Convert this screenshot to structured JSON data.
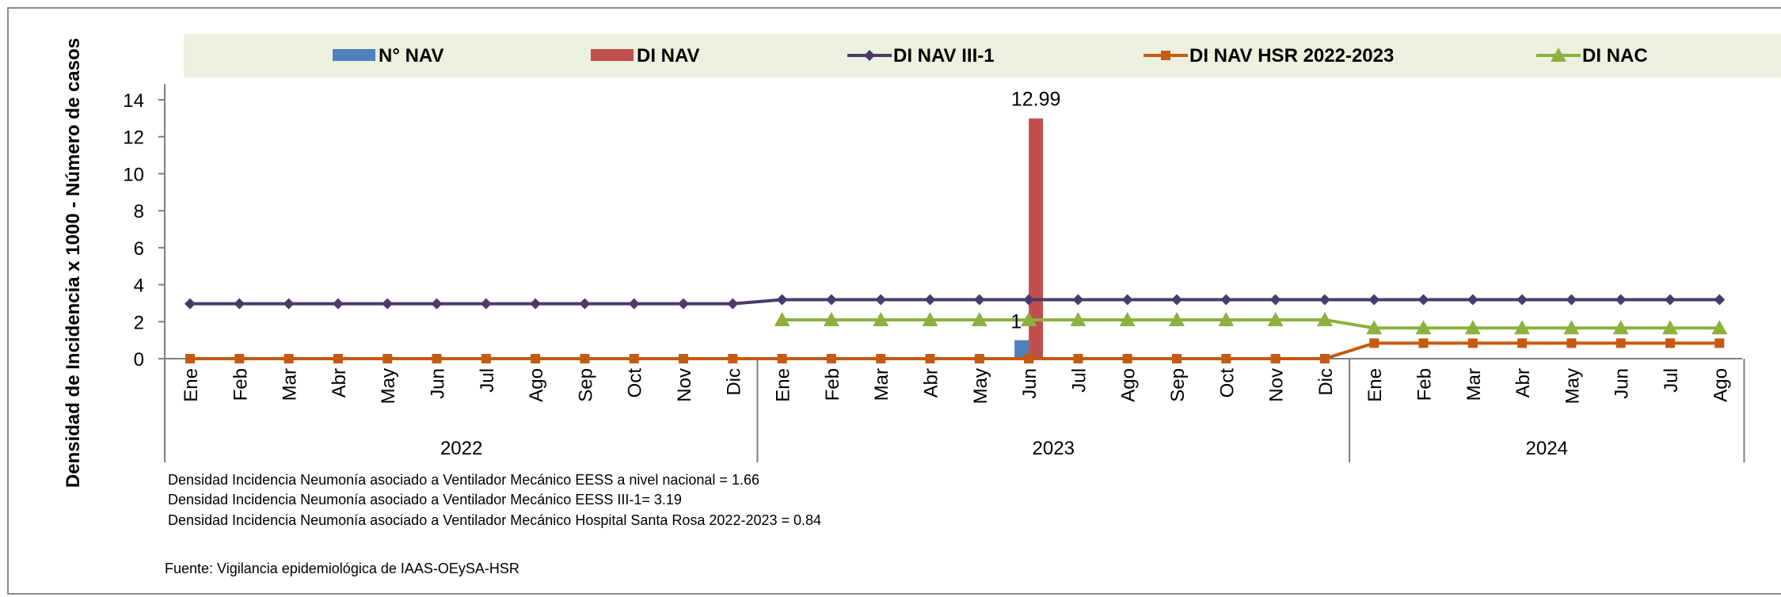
{
  "chart_data": {
    "type": "bar",
    "ylabel": "Densidad de Incidencia x 1000 - Número de casos",
    "ylim": [
      0,
      14
    ],
    "yticks": [
      0,
      2,
      4,
      6,
      8,
      10,
      12,
      14
    ],
    "grid": false,
    "legend_position": "top",
    "categories": [
      "Ene",
      "Feb",
      "Mar",
      "Abr",
      "May",
      "Jun",
      "Jul",
      "Ago",
      "Sep",
      "Oct",
      "Nov",
      "Dic",
      "Ene",
      "Feb",
      "Mar",
      "Abr",
      "May",
      "Jun",
      "Jul",
      "Ago",
      "Sep",
      "Oct",
      "Nov",
      "Dic",
      "Ene",
      "Feb",
      "Mar",
      "Abr",
      "May",
      "Jun",
      "Jul",
      "Ago"
    ],
    "groups": [
      {
        "label": "2022",
        "start": 0,
        "count": 12
      },
      {
        "label": "2023",
        "start": 12,
        "count": 12
      },
      {
        "label": "2024",
        "start": 24,
        "count": 8
      }
    ],
    "series": [
      {
        "name": "N° NAV",
        "kind": "bar",
        "color": "#4f81bd",
        "values": [
          null,
          null,
          null,
          null,
          null,
          null,
          null,
          null,
          null,
          null,
          null,
          null,
          null,
          null,
          null,
          null,
          null,
          1,
          null,
          null,
          null,
          null,
          null,
          null,
          null,
          null,
          null,
          null,
          null,
          null,
          null,
          null
        ],
        "data_labels": {
          "17": "1"
        }
      },
      {
        "name": "DI NAV",
        "kind": "bar",
        "color": "#c0504d",
        "values": [
          null,
          null,
          null,
          null,
          null,
          null,
          null,
          null,
          null,
          null,
          null,
          null,
          null,
          null,
          null,
          null,
          null,
          12.99,
          null,
          null,
          null,
          null,
          null,
          null,
          null,
          null,
          null,
          null,
          null,
          null,
          null,
          null
        ],
        "data_labels": {
          "17": "12.99"
        }
      },
      {
        "name": "DI NAV III-1",
        "kind": "line",
        "marker": "diamond",
        "color": "#4b3b6b",
        "values": [
          2.97,
          2.97,
          2.97,
          2.97,
          2.97,
          2.97,
          2.97,
          2.97,
          2.97,
          2.97,
          2.97,
          2.97,
          3.19,
          3.19,
          3.19,
          3.19,
          3.19,
          3.19,
          3.19,
          3.19,
          3.19,
          3.19,
          3.19,
          3.19,
          3.19,
          3.19,
          3.19,
          3.19,
          3.19,
          3.19,
          3.19,
          3.19
        ]
      },
      {
        "name": "DI NAV HSR 2022-2023",
        "kind": "line",
        "marker": "square",
        "color": "#c55a11",
        "values": [
          0,
          0,
          0,
          0,
          0,
          0,
          0,
          0,
          0,
          0,
          0,
          0,
          0,
          0,
          0,
          0,
          0,
          0,
          0,
          0,
          0,
          0,
          0,
          0,
          0.84,
          0.84,
          0.84,
          0.84,
          0.84,
          0.84,
          0.84,
          0.84
        ]
      },
      {
        "name": "DI NAC",
        "kind": "line",
        "marker": "triangle",
        "color": "#8db13f",
        "values": [
          null,
          null,
          null,
          null,
          null,
          null,
          null,
          null,
          null,
          null,
          null,
          null,
          2.1,
          2.1,
          2.1,
          2.1,
          2.1,
          2.1,
          2.1,
          2.1,
          2.1,
          2.1,
          2.1,
          2.1,
          1.66,
          1.66,
          1.66,
          1.66,
          1.66,
          1.66,
          1.66,
          1.66
        ]
      }
    ],
    "notes": [
      "Densidad Incidencia Neumonía asociado a Ventilador Mecánico EESS a nivel nacional = 1.66",
      "Densidad Incidencia Neumonía asociado a Ventilador Mecánico EESS III-1= 3.19",
      "Densidad Incidencia Neumonía asociado a Ventilador Mecánico  Hospital Santa Rosa 2022-2023 = 0.84"
    ],
    "source": "Fuente: Vigilancia epidemiológica  de  IAAS-OEySA-HSR"
  },
  "colors": {
    "legend_band": "#ebf1de",
    "frame": "#8c8c8c",
    "axis": "#7f7f7f"
  }
}
